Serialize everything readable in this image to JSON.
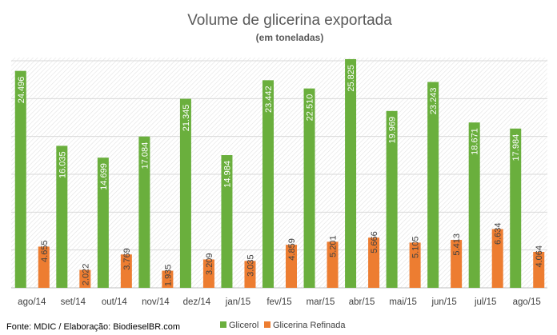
{
  "chart_data": {
    "type": "bar",
    "title": "Volume de glicerina exportada",
    "subtitle": "(em toneladas)",
    "categories": [
      "ago/14",
      "set/14",
      "out/14",
      "nov/14",
      "dez/14",
      "jan/15",
      "fev/15",
      "mar/15",
      "abr/15",
      "mai/15",
      "jun/15",
      "jul/15",
      "ago/15"
    ],
    "series": [
      {
        "name": "Glicerol",
        "color": "#6AAF3D",
        "values": [
          24496,
          16035,
          14699,
          17084,
          21345,
          14984,
          23442,
          22510,
          25825,
          19969,
          23243,
          18671,
          17984
        ],
        "labels": [
          "24.496",
          "16.035",
          "14.699",
          "17.084",
          "21.345",
          "14.984",
          "23.442",
          "22.510",
          "25.825",
          "19.969",
          "23.243",
          "18.671",
          "17.984"
        ]
      },
      {
        "name": "Glicerina Refinada",
        "color": "#ED7D31",
        "values": [
          4655,
          2022,
          3769,
          1935,
          3209,
          3035,
          4859,
          5201,
          5666,
          5105,
          5413,
          6634,
          4064
        ],
        "labels": [
          "4.655",
          "2.022",
          "3.769",
          "1.935",
          "3.209",
          "3.035",
          "4.859",
          "5.201",
          "5.666",
          "5.105",
          "5.413",
          "6.634",
          "4.064"
        ]
      }
    ],
    "ylim": [
      0,
      26000
    ],
    "grid": true,
    "legend_position": "bottom"
  },
  "source": "Fonte: MDIC / Elaboração: BiodieselBR.com"
}
